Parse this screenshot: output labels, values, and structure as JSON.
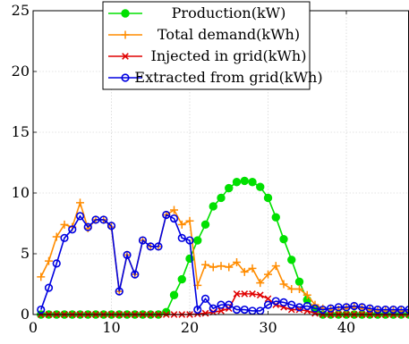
{
  "chart_data": {
    "type": "line",
    "title": "",
    "xlabel": "",
    "ylabel": "",
    "xlim": [
      0,
      48
    ],
    "ylim": [
      0,
      25
    ],
    "x_ticks": [
      0,
      10,
      20,
      30,
      40
    ],
    "y_ticks": [
      0,
      5,
      10,
      15,
      20,
      25
    ],
    "grid": true,
    "legend_position": "top-right",
    "x": [
      1,
      2,
      3,
      4,
      5,
      6,
      7,
      8,
      9,
      10,
      11,
      12,
      13,
      14,
      15,
      16,
      17,
      18,
      19,
      20,
      21,
      22,
      23,
      24,
      25,
      26,
      27,
      28,
      29,
      30,
      31,
      32,
      33,
      34,
      35,
      36,
      37,
      38,
      39,
      40,
      41,
      42,
      43,
      44,
      45,
      46,
      47,
      48
    ],
    "series": [
      {
        "name": "Production(kW)",
        "color": "#00e000",
        "marker": "circle-filled",
        "values": [
          0,
          0,
          0,
          0,
          0,
          0,
          0,
          0,
          0,
          0,
          0,
          0,
          0,
          0,
          0,
          0,
          0.2,
          1.6,
          2.9,
          4.6,
          6.1,
          7.4,
          8.9,
          9.6,
          10.4,
          10.9,
          11.0,
          10.9,
          10.5,
          9.6,
          8.0,
          6.2,
          4.5,
          2.7,
          1.2,
          0.4,
          0,
          0,
          0,
          0,
          0,
          0,
          0,
          0,
          0,
          0,
          0,
          0
        ]
      },
      {
        "name": "Total demand(kWh)",
        "color": "#ff8c00",
        "marker": "plus",
        "values": [
          3.1,
          4.4,
          6.4,
          7.4,
          7.2,
          9.2,
          7.1,
          7.8,
          7.8,
          7.2,
          1.9,
          4.9,
          3.3,
          6.1,
          5.6,
          5.6,
          8.2,
          8.6,
          7.4,
          7.7,
          2.4,
          4.1,
          3.9,
          4.0,
          3.9,
          4.3,
          3.5,
          3.8,
          2.6,
          3.3,
          4.0,
          2.5,
          2.1,
          2.1,
          1.6,
          0.8,
          0.5,
          0.4,
          0.4,
          0.5,
          0.6,
          0.5,
          0.4,
          0.3,
          0.3,
          0.3,
          0.3,
          0.3
        ]
      },
      {
        "name": "Injected in grid(kWh)",
        "color": "#e00000",
        "marker": "x",
        "values": [
          0,
          0,
          0,
          0,
          0,
          0,
          0,
          0,
          0,
          0,
          0,
          0,
          0,
          0,
          0,
          0,
          0,
          0,
          0,
          0,
          0.05,
          0.1,
          0.2,
          0.3,
          0.5,
          1.7,
          1.7,
          1.7,
          1.6,
          1.3,
          0.8,
          0.6,
          0.4,
          0.4,
          0.3,
          0.1,
          0,
          0,
          0,
          0,
          0,
          0,
          0,
          0,
          0,
          0,
          0,
          0
        ]
      },
      {
        "name": "Extracted from grid(kWh)",
        "color": "#0000e0",
        "marker": "circle-open",
        "values": [
          0.4,
          2.2,
          4.2,
          6.3,
          7.0,
          8.1,
          7.2,
          7.8,
          7.8,
          7.3,
          1.9,
          4.9,
          3.3,
          6.1,
          5.6,
          5.6,
          8.2,
          7.9,
          6.3,
          6.1,
          0.4,
          1.3,
          0.5,
          0.8,
          0.8,
          0.4,
          0.4,
          0.3,
          0.3,
          0.8,
          1.1,
          1.0,
          0.8,
          0.6,
          0.7,
          0.5,
          0.4,
          0.5,
          0.6,
          0.6,
          0.7,
          0.6,
          0.5,
          0.4,
          0.4,
          0.4,
          0.4,
          0.4
        ]
      }
    ]
  }
}
